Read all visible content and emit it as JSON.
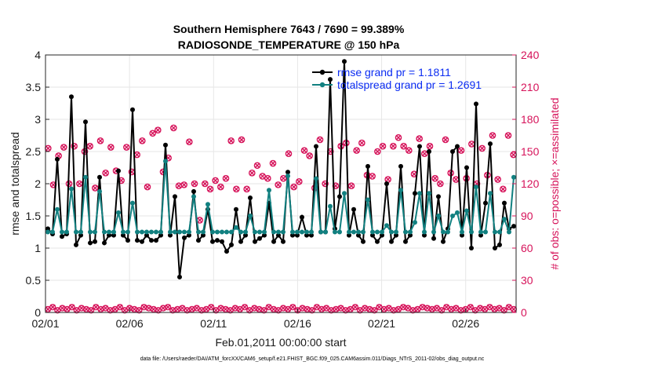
{
  "chart_data": {
    "type": "line",
    "title_line1": "Southern Hemisphere 7643 / 7690 = 99.389%",
    "title_line2": "RADIOSONDE_TEMPERATURE @ 150 hPa",
    "xlabel": "Feb.01,2011 00:00:00 start",
    "ylabel_left": "rmse and totalspread",
    "ylabel_right": "# of obs: o=possible; ×=assimilated",
    "ylim_left": [
      0,
      4
    ],
    "ylim_right": [
      0,
      240
    ],
    "xlim": [
      0,
      28
    ],
    "x_ticks": [
      0,
      5,
      10,
      15,
      20,
      25
    ],
    "x_tick_labels": [
      "02/01",
      "02/06",
      "02/11",
      "02/16",
      "02/21",
      "02/26"
    ],
    "y_left_ticks": [
      "0",
      "0.5",
      "1",
      "1.5",
      "2",
      "2.5",
      "3",
      "3.5",
      "4"
    ],
    "y_right_ticks": [
      "0",
      "30",
      "60",
      "90",
      "120",
      "150",
      "180",
      "210",
      "240"
    ],
    "footnote": "data file: /Users/raeder/DAI/ATM_forcXX/CAM6_setup/f.e21.FHIST_BGC.f09_025.CAM6assim.011/Diags_NTrS_2011-02/obs_diag_output.nc",
    "colors": {
      "rmse": "#000000",
      "spread": "#118080",
      "obs": "#d6135a",
      "legend_text": "#0b2cf2"
    },
    "series": [
      {
        "name": "rmse grand pr = 1.1811",
        "axis": "left",
        "values": [
          1.3,
          1.22,
          2.38,
          1.18,
          1.22,
          3.35,
          1.05,
          1.2,
          2.96,
          1.08,
          1.1,
          2.1,
          1.08,
          1.2,
          1.2,
          2.2,
          1.2,
          1.12,
          3.15,
          1.12,
          1.1,
          1.2,
          1.12,
          1.12,
          1.2,
          2.6,
          1.2,
          1.8,
          0.55,
          1.16,
          1.2,
          1.88,
          1.12,
          1.2,
          1.6,
          1.1,
          1.12,
          1.1,
          0.95,
          1.05,
          1.6,
          1.1,
          1.2,
          1.78,
          1.1,
          1.15,
          1.2,
          1.7,
          1.1,
          1.2,
          1.1,
          2.18,
          1.2,
          1.2,
          1.48,
          1.2,
          1.2,
          2.58,
          1.25,
          1.25,
          3.62,
          1.3,
          1.8,
          3.9,
          1.2,
          1.6,
          1.2,
          1.1,
          2.27,
          1.2,
          1.1,
          1.2,
          2.0,
          1.1,
          1.2,
          2.27,
          1.1,
          1.2,
          1.85,
          2.58,
          1.2,
          2.5,
          1.15,
          1.8,
          1.1,
          1.3,
          2.5,
          2.58,
          1.2,
          2.25,
          1.0,
          3.24,
          1.2,
          1.7,
          2.62,
          1.0,
          1.05,
          1.7,
          1.3,
          1.34
        ],
        "label": "rmse grand pr = 1.1811"
      },
      {
        "name": "totalspread grand pr = 1.2691",
        "axis": "left",
        "values": [
          1.25,
          1.25,
          1.6,
          1.25,
          1.25,
          1.92,
          1.25,
          1.25,
          2.1,
          1.25,
          1.25,
          1.88,
          1.25,
          1.25,
          1.25,
          1.55,
          1.25,
          1.25,
          1.7,
          1.25,
          1.25,
          1.25,
          1.25,
          1.25,
          1.25,
          2.35,
          1.25,
          1.25,
          1.25,
          1.25,
          1.25,
          1.8,
          1.25,
          1.25,
          1.68,
          1.25,
          1.25,
          1.25,
          1.25,
          1.25,
          1.32,
          1.25,
          1.25,
          1.5,
          1.25,
          1.25,
          1.25,
          1.9,
          1.25,
          1.25,
          1.25,
          2.12,
          1.25,
          1.25,
          1.25,
          1.25,
          1.25,
          2.08,
          1.25,
          1.25,
          1.65,
          1.25,
          1.25,
          1.85,
          1.25,
          1.25,
          1.25,
          1.25,
          1.75,
          1.25,
          1.25,
          1.25,
          1.35,
          1.25,
          1.25,
          1.9,
          1.25,
          1.25,
          1.4,
          1.85,
          1.25,
          1.85,
          1.25,
          1.5,
          1.25,
          1.25,
          1.5,
          1.55,
          1.25,
          1.58,
          1.25,
          1.95,
          1.25,
          1.25,
          1.85,
          1.25,
          1.25,
          1.45,
          1.25,
          2.1
        ],
        "label": "totalspread grand pr = 1.2691"
      },
      {
        "name": "obs possible",
        "axis": "right",
        "marker": "o",
        "values": [
          153,
          119,
          146,
          154,
          120,
          155,
          120,
          150,
          155,
          116,
          160,
          130,
          154,
          132,
          123,
          154,
          131,
          147,
          160,
          117,
          167,
          170,
          131,
          144,
          172,
          118,
          119,
          159,
          120,
          86,
          120,
          115,
          123,
          117,
          125,
          160,
          115,
          161,
          115,
          130,
          137,
          127,
          125,
          139,
          119,
          125,
          148,
          117,
          122,
          151,
          146,
          116,
          161,
          120,
          150,
          118,
          155,
          158,
          118,
          151,
          158,
          128,
          127,
          150,
          155,
          124,
          155,
          163,
          155,
          151,
          129,
          162,
          148,
          155,
          125,
          120,
          161,
          130,
          124,
          151,
          125,
          157,
          120,
          153,
          128,
          165,
          124,
          115,
          165,
          147
        ],
        "label": "o=possible"
      },
      {
        "name": "obs assimilated",
        "axis": "right",
        "marker": "x",
        "values": [
          3,
          5,
          2,
          4,
          3,
          5,
          2,
          4,
          3,
          2,
          5,
          3,
          4,
          2,
          3,
          5,
          2,
          4,
          3,
          2,
          5,
          4,
          3,
          2,
          4,
          5,
          2,
          3,
          4,
          2,
          3,
          4,
          2,
          3,
          5,
          2,
          4,
          3,
          2,
          4,
          3,
          5,
          2,
          4,
          3,
          2,
          5,
          3,
          2,
          4,
          3,
          5,
          2,
          4,
          3,
          2,
          5,
          3,
          4,
          2,
          3,
          4,
          2,
          3,
          5,
          2,
          4,
          3,
          2,
          5,
          3,
          4,
          2,
          3,
          5,
          4,
          2,
          3,
          5,
          4,
          3,
          4,
          2,
          5,
          3,
          4,
          2,
          3,
          5,
          2,
          4,
          3,
          5,
          3,
          4,
          2,
          5,
          3
        ],
        "label": "x=assimilated"
      }
    ],
    "legend": {
      "position": "top-right",
      "entries": [
        "rmse grand pr = 1.1811",
        "totalspread grand pr = 1.2691"
      ]
    }
  }
}
